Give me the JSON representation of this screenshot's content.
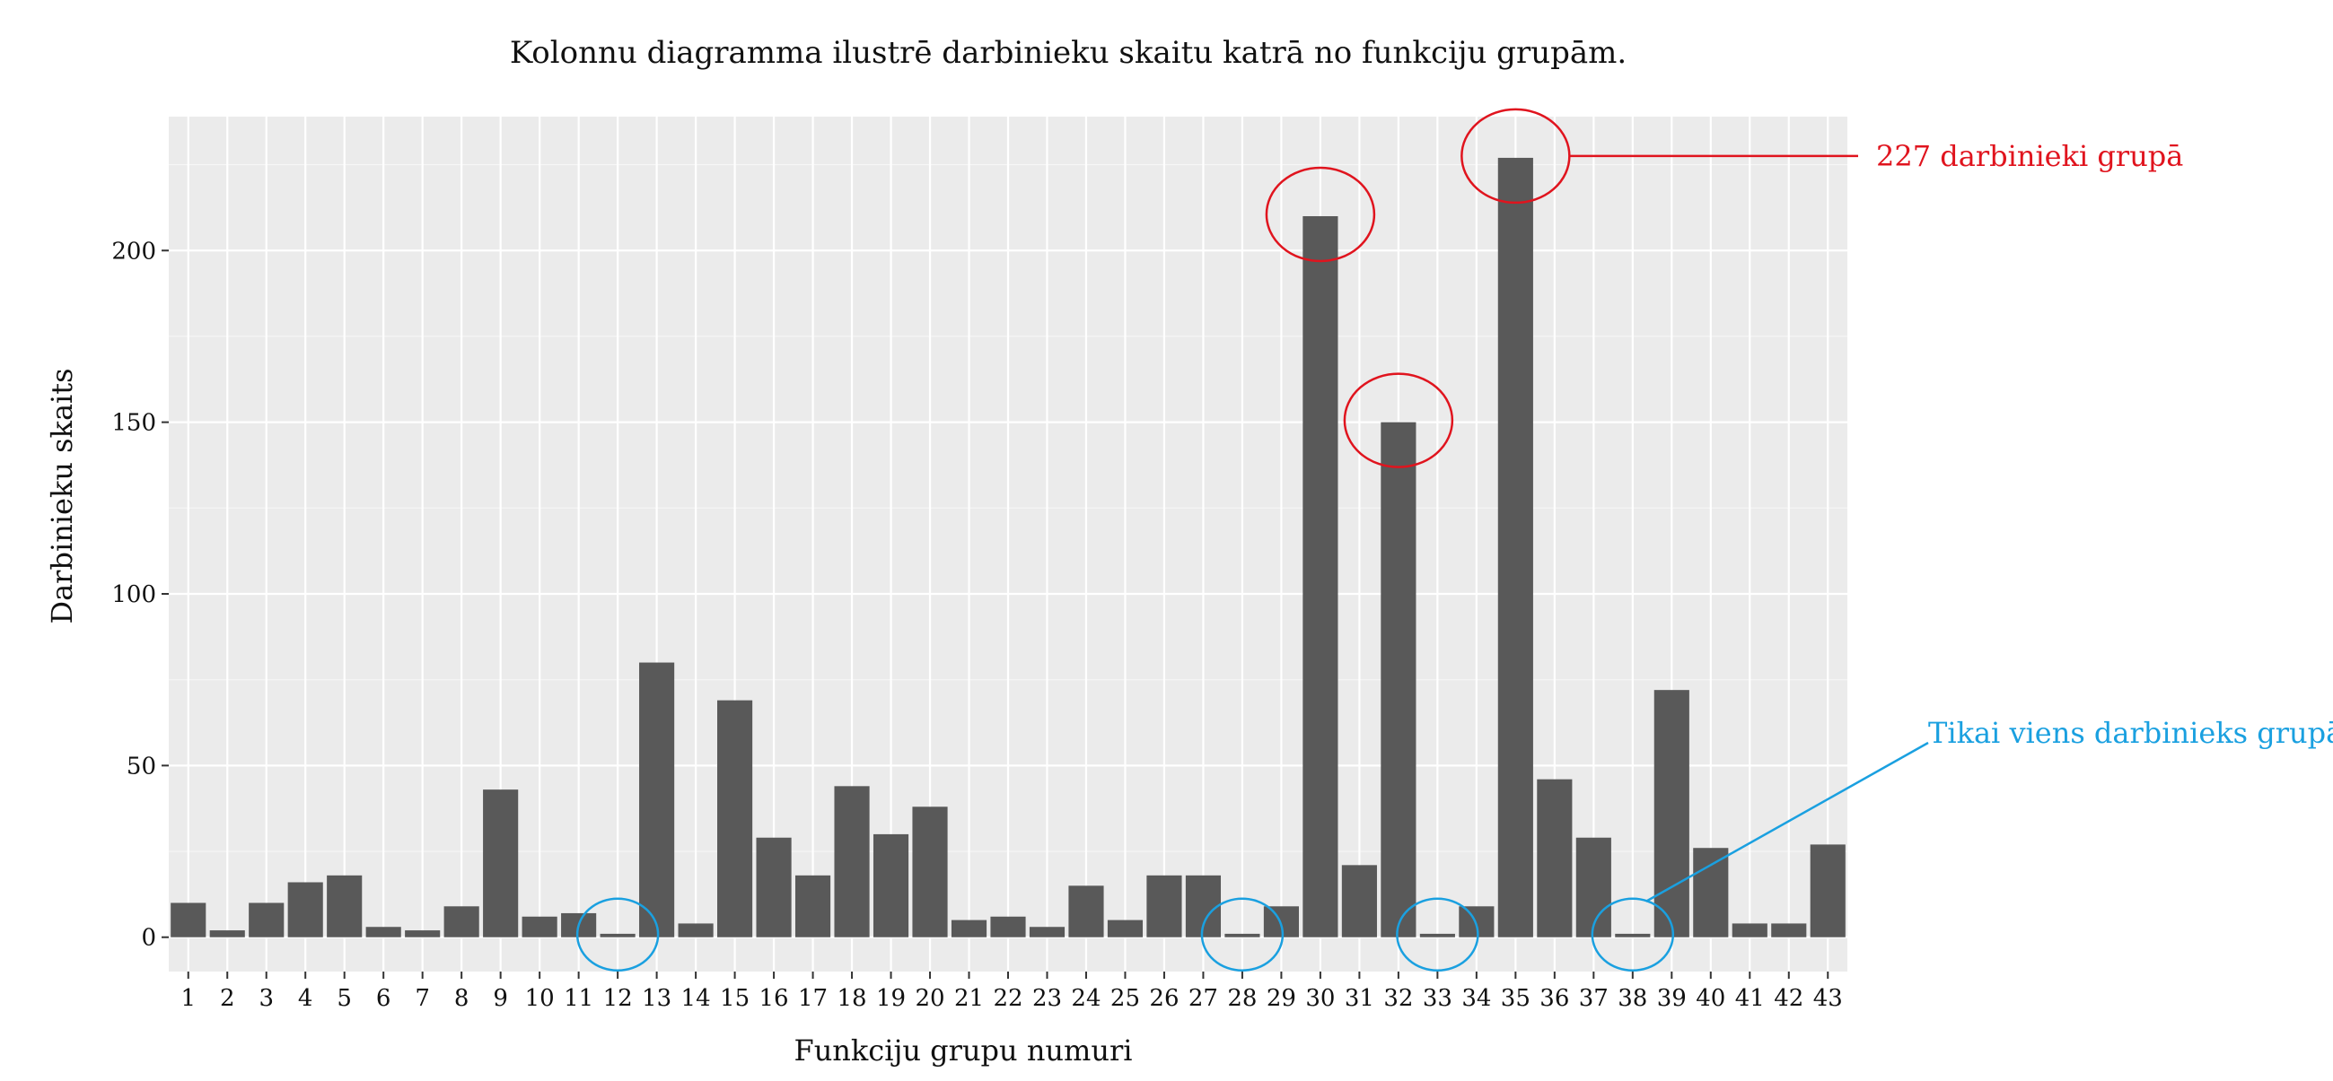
{
  "chart_data": {
    "type": "bar",
    "title": "Kolonnu diagramma ilustrē darbinieku skaitu katrā no funkciju grupām.",
    "xlabel": "Funkciju grupu numuri",
    "ylabel": "Darbinieku skaits",
    "categories": [
      "1",
      "2",
      "3",
      "4",
      "5",
      "6",
      "7",
      "8",
      "9",
      "10",
      "11",
      "12",
      "13",
      "14",
      "15",
      "16",
      "17",
      "18",
      "19",
      "20",
      "21",
      "22",
      "23",
      "24",
      "25",
      "26",
      "27",
      "28",
      "29",
      "30",
      "31",
      "32",
      "33",
      "34",
      "35",
      "36",
      "37",
      "38",
      "39",
      "40",
      "41",
      "42",
      "43"
    ],
    "values": [
      10,
      2,
      10,
      16,
      18,
      3,
      2,
      9,
      43,
      6,
      7,
      1,
      80,
      4,
      69,
      29,
      18,
      44,
      30,
      38,
      5,
      6,
      3,
      15,
      5,
      18,
      18,
      1,
      9,
      210,
      21,
      150,
      1,
      9,
      227,
      46,
      29,
      1,
      72,
      26,
      4,
      4,
      27
    ],
    "ylim": [
      -10,
      239
    ],
    "yticks": [
      0,
      50,
      100,
      150,
      200
    ],
    "grid": true,
    "bar_color": "#595959",
    "panel_background": "#ebebeb",
    "annotations": [
      {
        "text": "227 darbinieki grupā",
        "color": "#e0141e",
        "highlight": [
          "30",
          "32",
          "35"
        ],
        "pointer_to": "35"
      },
      {
        "text": "Tikai viens darbinieks grupā",
        "color": "#1aa0e0",
        "highlight": [
          "12",
          "28",
          "33",
          "38"
        ],
        "pointer_to": "38"
      }
    ]
  }
}
